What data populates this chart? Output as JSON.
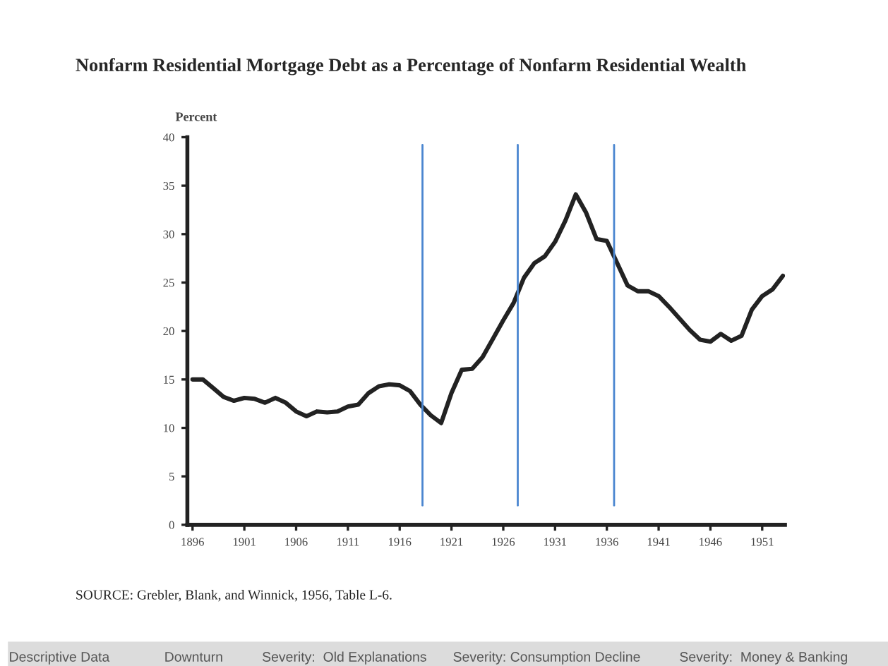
{
  "chart_data": {
    "type": "line",
    "title": "Nonfarm Residential Mortgage Debt as a Percentage of Nonfarm Residential Wealth",
    "ylabel": "Percent",
    "x": [
      1896,
      1897,
      1898,
      1899,
      1900,
      1901,
      1902,
      1903,
      1904,
      1905,
      1906,
      1907,
      1908,
      1909,
      1910,
      1911,
      1912,
      1913,
      1914,
      1915,
      1916,
      1917,
      1918,
      1919,
      1920,
      1921,
      1922,
      1923,
      1924,
      1925,
      1926,
      1927,
      1928,
      1929,
      1930,
      1931,
      1932,
      1933,
      1934,
      1935,
      1936,
      1937,
      1938,
      1939,
      1940,
      1941,
      1942,
      1943,
      1944,
      1945,
      1946,
      1947,
      1948,
      1949,
      1950,
      1951,
      1952,
      1953
    ],
    "series": [
      {
        "color": "#222222",
        "values": [
          15.0,
          15.0,
          14.1,
          13.2,
          12.8,
          13.1,
          13.0,
          12.6,
          13.1,
          12.6,
          11.7,
          11.2,
          11.7,
          11.6,
          11.7,
          12.2,
          12.4,
          13.6,
          14.3,
          14.5,
          14.4,
          13.8,
          12.4,
          11.3,
          10.5,
          13.6,
          16.0,
          16.1,
          17.3,
          19.2,
          21.1,
          22.9,
          25.5,
          27.0,
          27.7,
          29.2,
          31.4,
          34.1,
          32.2,
          29.5,
          29.3,
          27.0,
          24.7,
          24.1,
          24.1,
          23.6,
          22.5,
          21.3,
          20.1,
          19.1,
          18.9,
          19.7,
          19.0,
          19.5,
          22.2,
          23.6,
          24.3,
          25.7
        ]
      }
    ],
    "xlim": [
      1895.5,
      1953.2
    ],
    "xticks": [
      1896,
      1901,
      1906,
      1911,
      1916,
      1921,
      1926,
      1931,
      1936,
      1941,
      1946,
      1951
    ],
    "ylim": [
      0,
      40
    ],
    "yticks": [
      0,
      5,
      10,
      15,
      20,
      25,
      30,
      35,
      40
    ],
    "grid": false,
    "legend": false,
    "marker": "none",
    "line_style": "solid",
    "ref_lines": [
      {
        "axis": "x",
        "value": 1918.2,
        "color": "#4a86d0"
      },
      {
        "axis": "x",
        "value": 1927.4,
        "color": "#4a86d0"
      },
      {
        "axis": "x",
        "value": 1936.7,
        "color": "#4a86d0"
      }
    ],
    "annotations": [
      "SOURCE: Grebler, Blank, and Winnick, 1956, Table L-6.",
      "Descriptive Data",
      "Downturn",
      "Severity:  Old Explanations",
      "Severity: Consumption Decline",
      "Severity:  Money & Banking"
    ]
  }
}
